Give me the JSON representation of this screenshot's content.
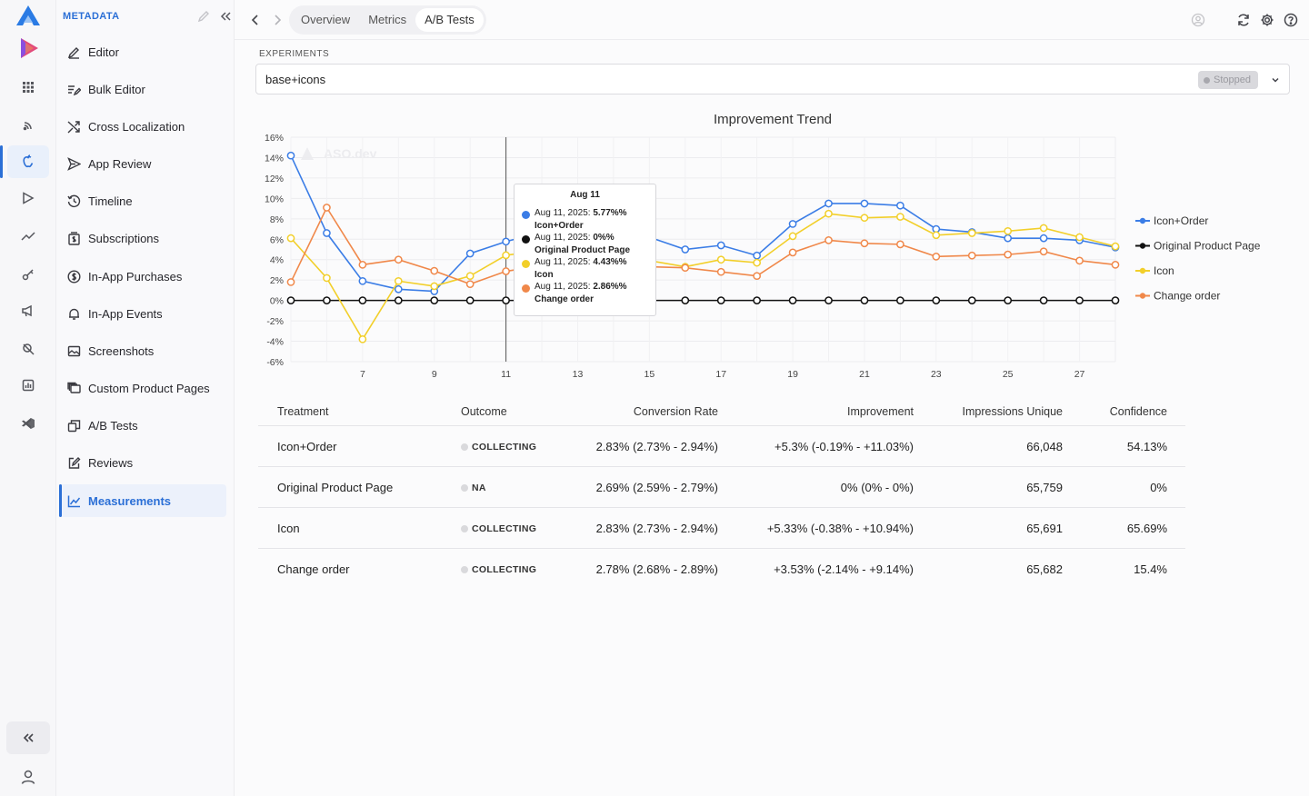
{
  "sidebar": {
    "title": "METADATA",
    "items": [
      {
        "label": "Editor",
        "icon": "pencil-icon"
      },
      {
        "label": "Bulk Editor",
        "icon": "bulk-edit-icon"
      },
      {
        "label": "Cross Localization",
        "icon": "shuffle-icon"
      },
      {
        "label": "App Review",
        "icon": "send-icon"
      },
      {
        "label": "Timeline",
        "icon": "history-icon"
      },
      {
        "label": "Subscriptions",
        "icon": "subscriptions-icon"
      },
      {
        "label": "In-App Purchases",
        "icon": "dollar-icon"
      },
      {
        "label": "In-App Events",
        "icon": "bell-icon"
      },
      {
        "label": "Screenshots",
        "icon": "image-icon"
      },
      {
        "label": "Custom Product Pages",
        "icon": "pages-icon"
      },
      {
        "label": "A/B Tests",
        "icon": "ab-icon"
      },
      {
        "label": "Reviews",
        "icon": "edit-box-icon"
      },
      {
        "label": "Measurements",
        "icon": "chart-icon"
      }
    ],
    "active_item": "Measurements"
  },
  "topbar": {
    "tabs": [
      "Overview",
      "Metrics",
      "A/B Tests"
    ],
    "active_tab": "A/B Tests"
  },
  "experiments": {
    "label": "EXPERIMENTS",
    "selected": "base+icons",
    "status": "Stopped"
  },
  "tooltip": {
    "title": "Aug 11",
    "rows": [
      {
        "date": "Aug 11, 2025:",
        "value": "5.77%%",
        "series": "Icon+Order",
        "color": "#3b7de6"
      },
      {
        "date": "Aug 11, 2025:",
        "value": "0%%",
        "series": "Original Product Page",
        "color": "#111111"
      },
      {
        "date": "Aug 11, 2025:",
        "value": "4.43%%",
        "series": "Icon",
        "color": "#f2cf2a"
      },
      {
        "date": "Aug 11, 2025:",
        "value": "2.86%%",
        "series": "Change order",
        "color": "#f0884a"
      }
    ]
  },
  "chart_data": {
    "type": "line",
    "title": "Improvement Trend",
    "watermark": "ASO.dev",
    "x": [
      5,
      6,
      7,
      8,
      9,
      10,
      11,
      12,
      13,
      14,
      15,
      16,
      17,
      18,
      19,
      20,
      21,
      22,
      23,
      24,
      25,
      26,
      27,
      28
    ],
    "x_ticks": [
      7,
      9,
      11,
      13,
      15,
      17,
      19,
      21,
      23,
      25,
      27
    ],
    "y_ticks": [
      "16%",
      "14%",
      "12%",
      "10%",
      "8%",
      "6%",
      "4%",
      "2%",
      "0%",
      "-2%",
      "-4%",
      "-6%"
    ],
    "ylim": [
      -6,
      16
    ],
    "crosshair_x": 11,
    "legend_position": "right",
    "grid": true,
    "series": [
      {
        "name": "Icon+Order",
        "color": "#3b7de6",
        "values": [
          14.2,
          6.6,
          1.9,
          1.1,
          0.9,
          4.6,
          5.77,
          6.7,
          7.1,
          6.6,
          6.2,
          5.0,
          5.4,
          4.4,
          7.5,
          9.5,
          9.5,
          9.3,
          7.0,
          6.7,
          6.1,
          6.1,
          5.9,
          5.2
        ]
      },
      {
        "name": "Original Product Page",
        "color": "#111111",
        "values": [
          0,
          0,
          0,
          0,
          0,
          0,
          0,
          0,
          0,
          0,
          0,
          0,
          0,
          0,
          0,
          0,
          0,
          0,
          0,
          0,
          0,
          0,
          0,
          0
        ]
      },
      {
        "name": "Icon",
        "color": "#f2cf2a",
        "values": [
          6.1,
          2.2,
          -3.8,
          1.9,
          1.4,
          2.4,
          4.43,
          4.9,
          4.6,
          4.1,
          3.9,
          3.3,
          4.0,
          3.7,
          6.3,
          8.5,
          8.1,
          8.2,
          6.4,
          6.6,
          6.8,
          7.1,
          6.2,
          5.3
        ]
      },
      {
        "name": "Change order",
        "color": "#f0884a",
        "values": [
          1.8,
          9.1,
          3.5,
          4.0,
          2.9,
          1.6,
          2.86,
          3.4,
          3.7,
          3.3,
          3.3,
          3.2,
          2.8,
          2.4,
          4.7,
          5.9,
          5.6,
          5.5,
          4.3,
          4.4,
          4.5,
          4.8,
          3.9,
          3.5
        ]
      }
    ]
  },
  "table": {
    "headers": [
      "Treatment",
      "Outcome",
      "Conversion Rate",
      "Improvement",
      "Impressions Unique",
      "Confidence"
    ],
    "rows": [
      {
        "treatment": "Icon+Order",
        "outcome": "COLLECTING",
        "conversion": "2.83% (2.73% - 2.94%)",
        "improvement": "+5.3% (-0.19% - +11.03%)",
        "impressions": "66,048",
        "confidence": "54.13%"
      },
      {
        "treatment": "Original Product Page",
        "outcome": "NA",
        "conversion": "2.69% (2.59% - 2.79%)",
        "improvement": "0% (0% - 0%)",
        "impressions": "65,759",
        "confidence": "0%"
      },
      {
        "treatment": "Icon",
        "outcome": "COLLECTING",
        "conversion": "2.83% (2.73% - 2.94%)",
        "improvement": "+5.33% (-0.38% - +10.94%)",
        "impressions": "65,691",
        "confidence": "65.69%"
      },
      {
        "treatment": "Change order",
        "outcome": "COLLECTING",
        "conversion": "2.78% (2.68% - 2.89%)",
        "improvement": "+3.53% (-2.14% - +9.14%)",
        "impressions": "65,682",
        "confidence": "15.4%"
      }
    ]
  }
}
